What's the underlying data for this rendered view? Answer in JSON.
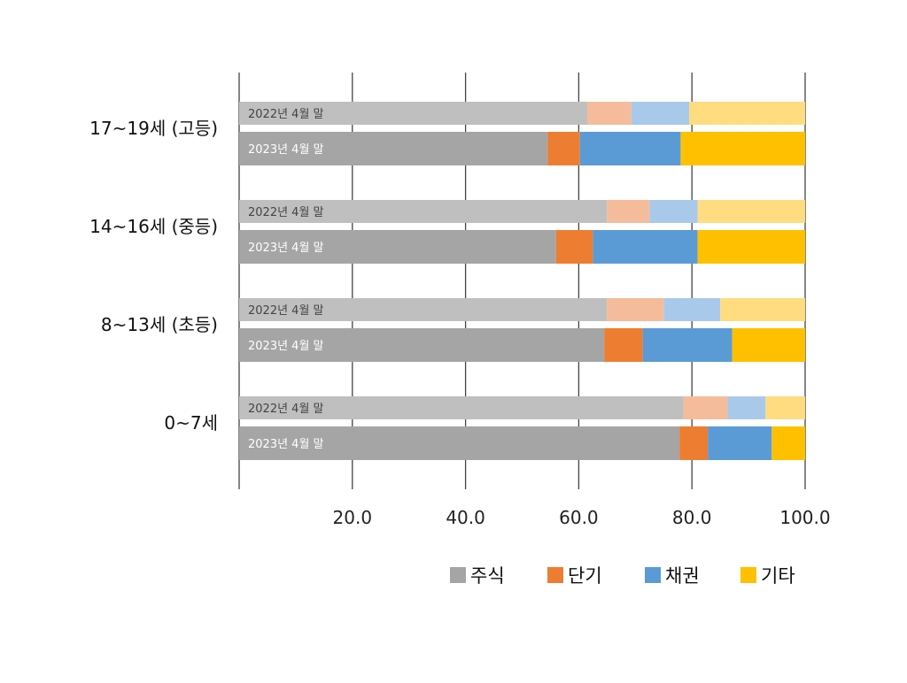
{
  "chart_data": {
    "type": "bar",
    "orientation": "horizontal",
    "stacked": true,
    "title": "",
    "xlabel": "",
    "ylabel": "",
    "xlim": [
      0,
      100
    ],
    "x_ticks": [
      "20.0",
      "40.0",
      "60.0",
      "80.0",
      "100.0"
    ],
    "grid": true,
    "legend_position": "bottom",
    "legend": [
      "주식",
      "단기",
      "채권",
      "기타"
    ],
    "series_colors": {
      "2023": [
        "#a5a5a5",
        "#ed7d31",
        "#5b9bd5",
        "#ffc000"
      ],
      "2022": [
        "#bfbfbf",
        "#f4bc9a",
        "#a9c9eb",
        "#ffdc80"
      ]
    },
    "groups": [
      {
        "label": "17~19세 (고등)",
        "bars": [
          {
            "label": "2022년 4월 말",
            "values": [
              61.5,
              7.8,
              10.2,
              20.5
            ]
          },
          {
            "label": "2023년 4월 말",
            "values": [
              54.5,
              5.7,
              17.8,
              22.0
            ]
          }
        ]
      },
      {
        "label": "14~16세 (중등)",
        "bars": [
          {
            "label": "2022년 4월 말",
            "values": [
              65.0,
              7.5,
              8.5,
              19.0
            ]
          },
          {
            "label": "2023년 4월 말",
            "values": [
              56.0,
              6.5,
              18.5,
              19.0
            ]
          }
        ]
      },
      {
        "label": "8~13세 (초등)",
        "bars": [
          {
            "label": "2022년 4월 말",
            "values": [
              65.0,
              10.0,
              10.0,
              15.0
            ]
          },
          {
            "label": "2023년 4월 말",
            "values": [
              64.5,
              6.8,
              15.8,
              12.9
            ]
          }
        ]
      },
      {
        "label": "0~7세",
        "bars": [
          {
            "label": "2022년 4월 말",
            "values": [
              78.5,
              7.8,
              6.7,
              7.0
            ]
          },
          {
            "label": "2023년 4월 말",
            "values": [
              77.8,
              5.0,
              11.3,
              5.9
            ]
          }
        ]
      }
    ]
  }
}
